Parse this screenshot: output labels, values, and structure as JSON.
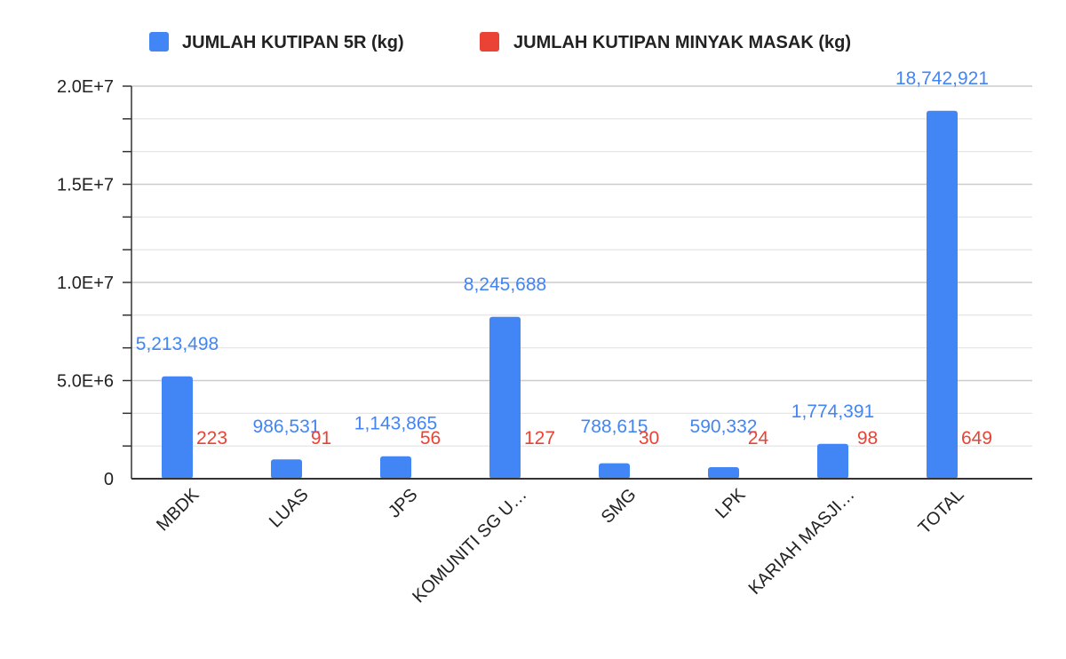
{
  "chart_data": {
    "type": "bar",
    "title": "",
    "xlabel": "",
    "ylabel": "",
    "categories": [
      "MBDK",
      "LUAS",
      "JPS",
      "KOMUNITI SG U…",
      "SMG",
      "LPK",
      "KARIAH MASJI…",
      "TOTAL"
    ],
    "series": [
      {
        "name": "JUMLAH KUTIPAN 5R (kg)",
        "color": "#4285f4",
        "values": [
          5213498,
          986531,
          1143865,
          8245688,
          788615,
          590332,
          1774391,
          18742921
        ],
        "labels": [
          "5,213,498",
          "986,531",
          "1,143,865",
          "8,245,688",
          "788,615",
          "590,332",
          "1,774,391",
          "18,742,921"
        ]
      },
      {
        "name": "JUMLAH KUTIPAN MINYAK MASAK (kg)",
        "color": "#ea4335",
        "values": [
          223,
          91,
          56,
          127,
          30,
          24,
          98,
          649
        ],
        "labels": [
          "223",
          "91",
          "56",
          "127",
          "30",
          "24",
          "98",
          "649"
        ]
      }
    ],
    "ylim": [
      0,
      20000000
    ],
    "yticks": [
      0,
      5000000,
      10000000,
      15000000,
      20000000
    ],
    "ytick_labels": [
      "0",
      "5.0E+6",
      "1.0E+7",
      "1.5E+7",
      "2.0E+7"
    ],
    "grid": true,
    "legend": "top"
  }
}
